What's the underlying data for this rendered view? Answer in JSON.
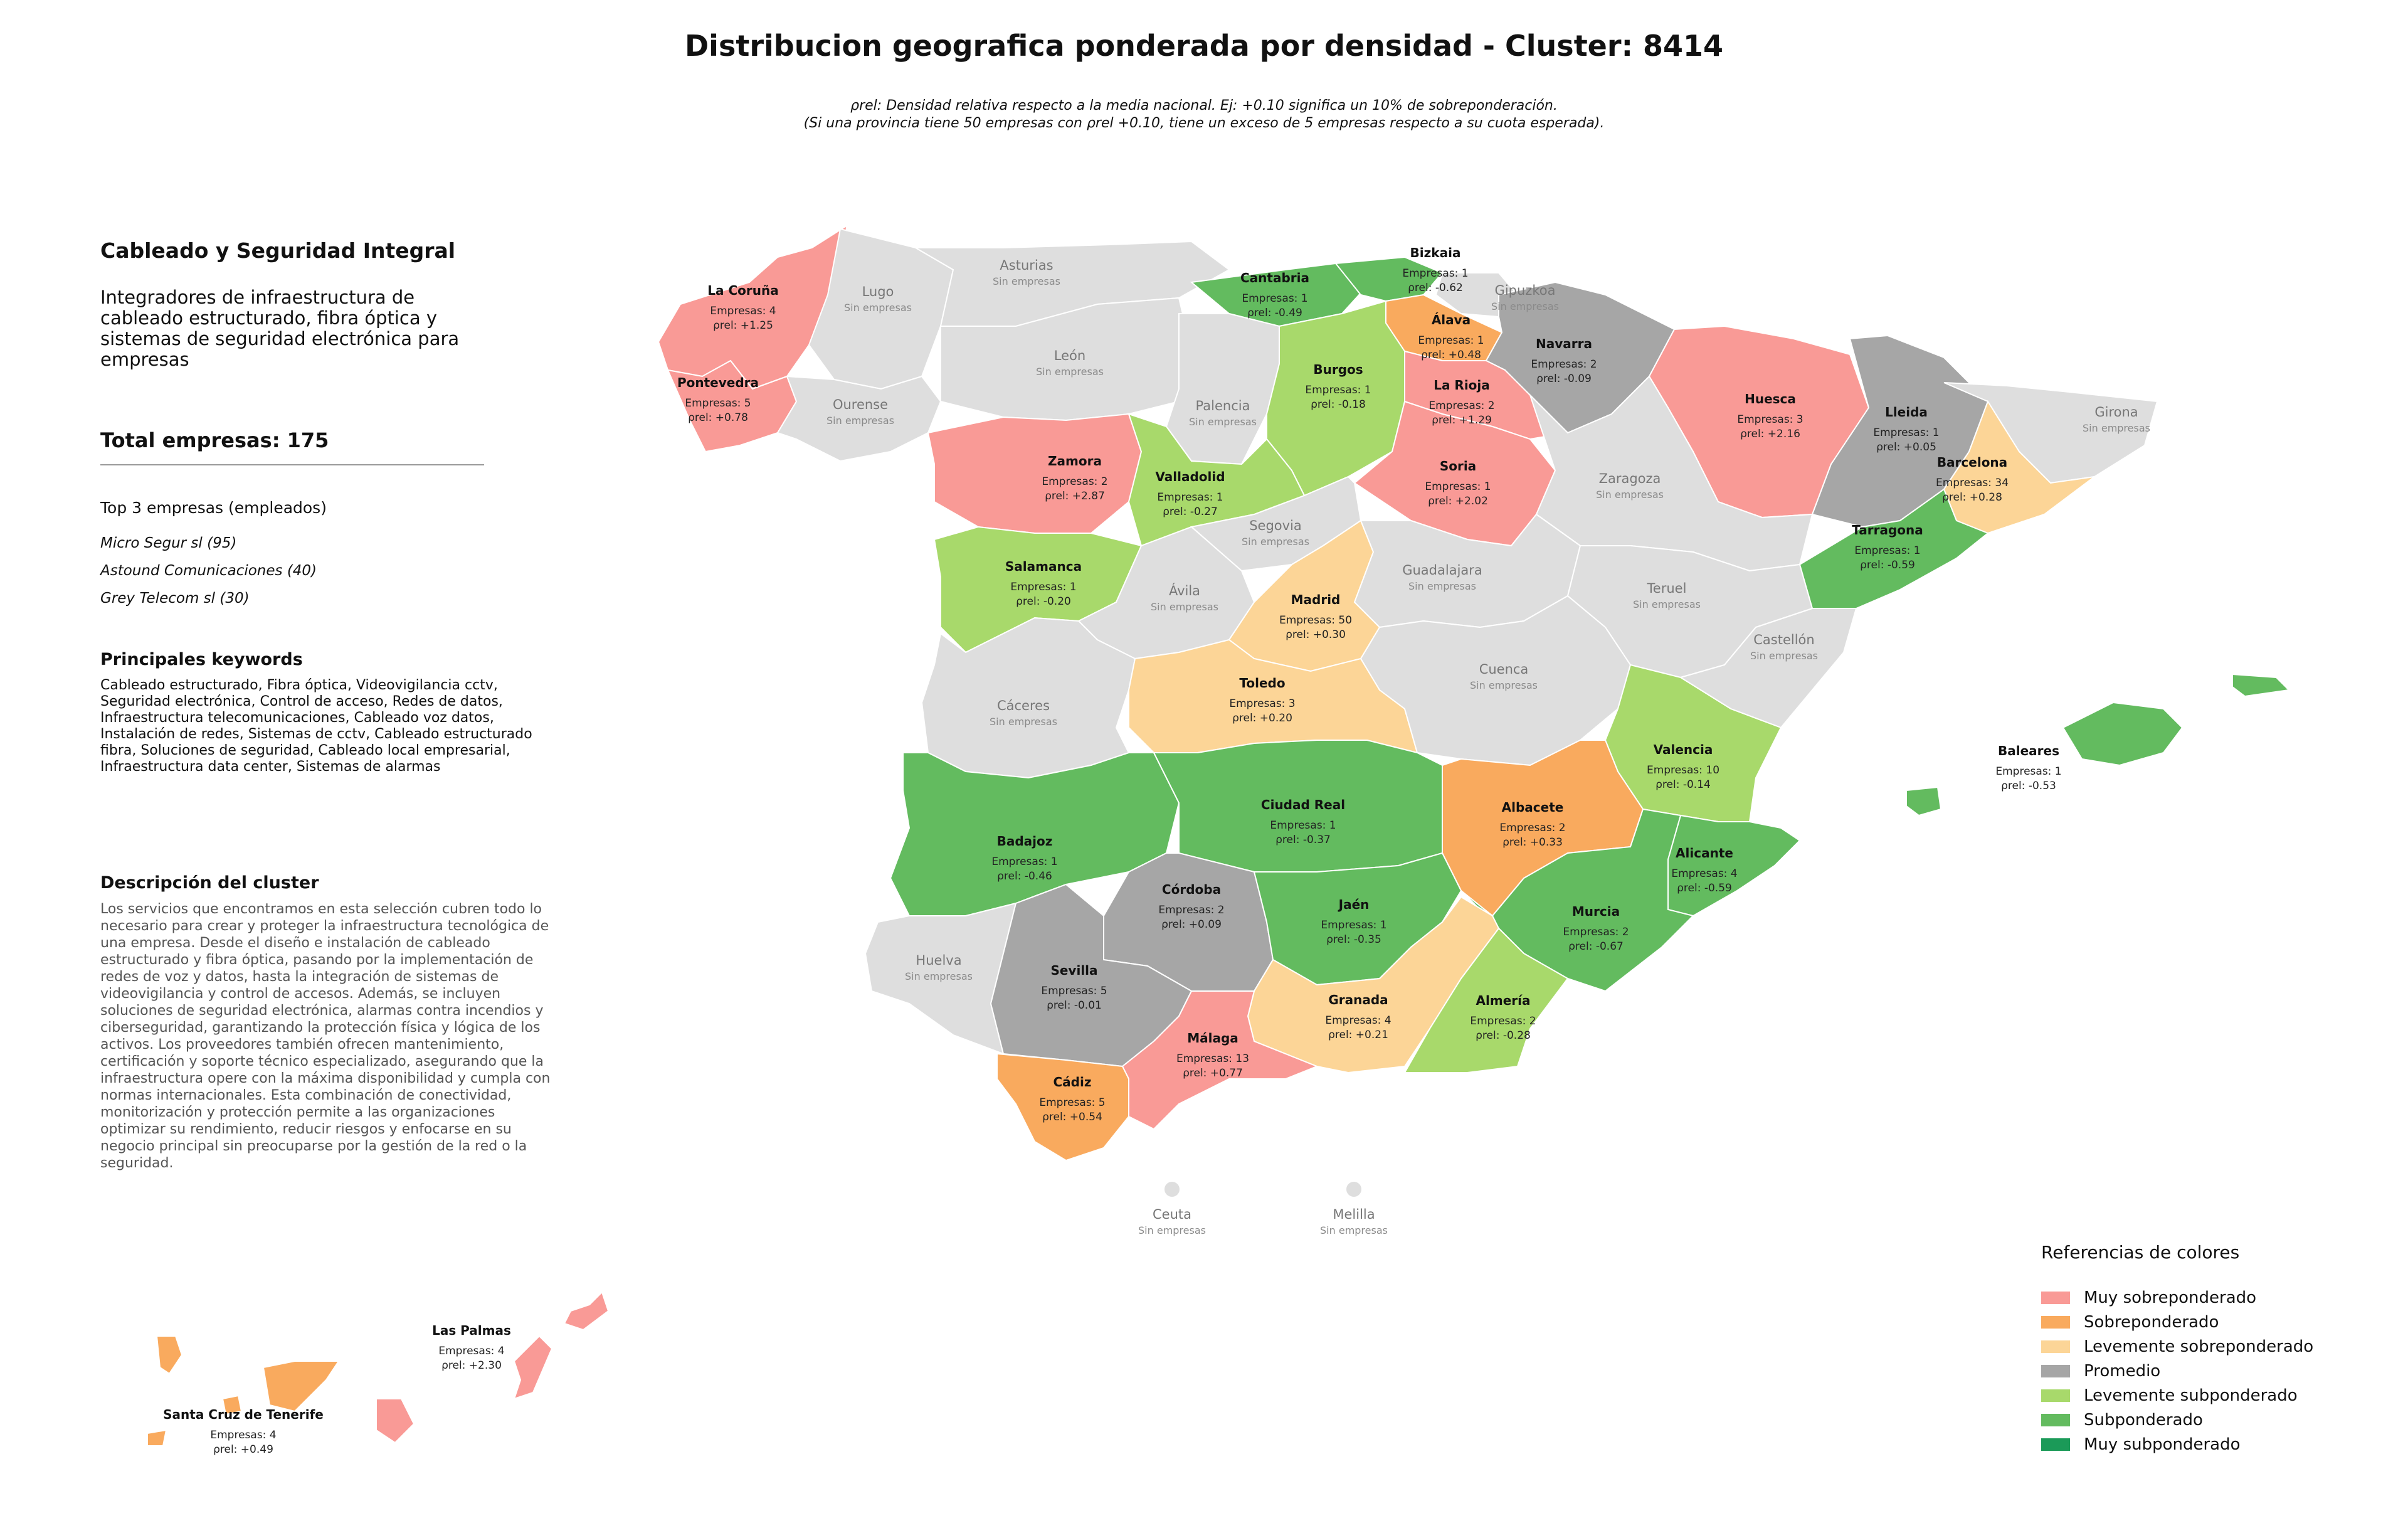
{
  "title": "Distribucion geografica ponderada por densidad - Cluster: 8414",
  "note_line1": "ρrel: Densidad relativa respecto a la media nacional. Ej: +0.10 significa un 10% de sobreponderación.",
  "note_line2": "(Si una provincia tiene 50 empresas con ρrel +0.10, tiene un exceso de 5 empresas respecto a su cuota esperada).",
  "panel": {
    "heading": "Cableado y Seguridad Integral",
    "description": "Integradores de infraestructura de cableado estructurado, fibra óptica y sistemas de seguridad electrónica para empresas",
    "total": "Total empresas: 175",
    "top_title": "Top 3 empresas (empleados)",
    "top": [
      "Micro Segur sl (95)",
      "Astound Comunicaciones (40)",
      "Grey Telecom sl (30)"
    ],
    "keywords_title": "Principales keywords",
    "keywords": "Cableado estructurado, Fibra óptica, Videovigilancia cctv, Seguridad electrónica, Control de acceso, Redes de datos, Infraestructura telecomunicaciones, Cableado voz datos, Instalación de redes, Sistemas de cctv, Cableado estructurado fibra, Soluciones de seguridad, Cableado local empresarial, Infraestructura data center, Sistemas de alarmas",
    "cluster_title": "Descripción del cluster",
    "cluster_text": "Los servicios que encontramos en esta selección cubren todo lo necesario para crear y proteger la infraestructura tecnológica de una empresa. Desde el diseño e instalación de cableado estructurado y fibra óptica, pasando por la implementación de redes de voz y datos, hasta la integración de sistemas de videovigilancia y control de accesos. Además, se incluyen soluciones de seguridad electrónica, alarmas contra incendios y ciberseguridad, garantizando la protección física y lógica de los activos. Los proveedores también ofrecen mantenimiento, certificación y soporte técnico especializado, asegurando que la infraestructura opere con la máxima disponibilidad y cumpla con normas internacionales. Esta combinación de conectividad, monitorización y protección permite a las organizaciones optimizar su rendimiento, reducir riesgos y enfocarse en su negocio principal sin preocuparse por la gestión de la red o la seguridad."
  },
  "labels": {
    "empresas_prefix": "Empresas: ",
    "rho_prefix": "ρrel: ",
    "sin_empresas": "Sin empresas"
  },
  "colors": {
    "muy_sobre": "#f99a96",
    "sobre": "#f9aa5e",
    "lev_sobre": "#fcd597",
    "promedio": "#a6a6a6",
    "lev_sub": "#a8d96b",
    "sub": "#63bb5f",
    "muy_sub": "#1b9a58",
    "none": "#dedede"
  },
  "provinces": [
    {
      "name": "La Coruña",
      "empresas": 4,
      "rho": "+1.25",
      "cat": "muy_sobre"
    },
    {
      "name": "Lugo",
      "empresas": null,
      "cat": "none"
    },
    {
      "name": "Asturias",
      "empresas": null,
      "cat": "none"
    },
    {
      "name": "Cantabria",
      "empresas": 1,
      "rho": "-0.49",
      "cat": "sub"
    },
    {
      "name": "Bizkaia",
      "empresas": 1,
      "rho": "-0.62",
      "cat": "sub"
    },
    {
      "name": "Gipuzkoa",
      "empresas": null,
      "cat": "none"
    },
    {
      "name": "Álava",
      "empresas": 1,
      "rho": "+0.48",
      "cat": "sobre"
    },
    {
      "name": "Navarra",
      "empresas": 2,
      "rho": "-0.09",
      "cat": "promedio"
    },
    {
      "name": "Huesca",
      "empresas": 3,
      "rho": "+2.16",
      "cat": "muy_sobre"
    },
    {
      "name": "Lleida",
      "empresas": 1,
      "rho": "+0.05",
      "cat": "promedio"
    },
    {
      "name": "Girona",
      "empresas": null,
      "cat": "none"
    },
    {
      "name": "Barcelona",
      "empresas": 34,
      "rho": "+0.28",
      "cat": "lev_sobre"
    },
    {
      "name": "Tarragona",
      "empresas": 1,
      "rho": "-0.59",
      "cat": "sub"
    },
    {
      "name": "Pontevedra",
      "empresas": 5,
      "rho": "+0.78",
      "cat": "muy_sobre"
    },
    {
      "name": "Ourense",
      "empresas": null,
      "cat": "none"
    },
    {
      "name": "León",
      "empresas": null,
      "cat": "none"
    },
    {
      "name": "Palencia",
      "empresas": null,
      "cat": "none"
    },
    {
      "name": "Burgos",
      "empresas": 1,
      "rho": "-0.18",
      "cat": "lev_sub"
    },
    {
      "name": "La Rioja",
      "empresas": 2,
      "rho": "+1.29",
      "cat": "muy_sobre"
    },
    {
      "name": "Soria",
      "empresas": 1,
      "rho": "+2.02",
      "cat": "muy_sobre"
    },
    {
      "name": "Zaragoza",
      "empresas": null,
      "cat": "none"
    },
    {
      "name": "Zamora",
      "empresas": 2,
      "rho": "+2.87",
      "cat": "muy_sobre"
    },
    {
      "name": "Valladolid",
      "empresas": 1,
      "rho": "-0.27",
      "cat": "lev_sub"
    },
    {
      "name": "Segovia",
      "empresas": null,
      "cat": "none"
    },
    {
      "name": "Salamanca",
      "empresas": 1,
      "rho": "-0.20",
      "cat": "lev_sub"
    },
    {
      "name": "Ávila",
      "empresas": null,
      "cat": "none"
    },
    {
      "name": "Madrid",
      "empresas": 50,
      "rho": "+0.30",
      "cat": "lev_sobre"
    },
    {
      "name": "Guadalajara",
      "empresas": null,
      "cat": "none"
    },
    {
      "name": "Teruel",
      "empresas": null,
      "cat": "none"
    },
    {
      "name": "Castellón",
      "empresas": null,
      "cat": "none"
    },
    {
      "name": "Cáceres",
      "empresas": null,
      "cat": "none"
    },
    {
      "name": "Toledo",
      "empresas": 3,
      "rho": "+0.20",
      "cat": "lev_sobre"
    },
    {
      "name": "Cuenca",
      "empresas": null,
      "cat": "none"
    },
    {
      "name": "Valencia",
      "empresas": 10,
      "rho": "-0.14",
      "cat": "lev_sub"
    },
    {
      "name": "Baleares",
      "empresas": 1,
      "rho": "-0.53",
      "cat": "sub"
    },
    {
      "name": "Badajoz",
      "empresas": 1,
      "rho": "-0.46",
      "cat": "sub"
    },
    {
      "name": "Ciudad Real",
      "empresas": 1,
      "rho": "-0.37",
      "cat": "sub"
    },
    {
      "name": "Albacete",
      "empresas": 2,
      "rho": "+0.33",
      "cat": "sobre"
    },
    {
      "name": "Alicante",
      "empresas": 4,
      "rho": "-0.59",
      "cat": "sub"
    },
    {
      "name": "Córdoba",
      "empresas": 2,
      "rho": "+0.09",
      "cat": "promedio"
    },
    {
      "name": "Jaén",
      "empresas": 1,
      "rho": "-0.35",
      "cat": "sub"
    },
    {
      "name": "Murcia",
      "empresas": 2,
      "rho": "-0.67",
      "cat": "sub"
    },
    {
      "name": "Huelva",
      "empresas": null,
      "cat": "none"
    },
    {
      "name": "Sevilla",
      "empresas": 5,
      "rho": "-0.01",
      "cat": "promedio"
    },
    {
      "name": "Granada",
      "empresas": 4,
      "rho": "+0.21",
      "cat": "lev_sobre"
    },
    {
      "name": "Almería",
      "empresas": 2,
      "rho": "-0.28",
      "cat": "lev_sub"
    },
    {
      "name": "Málaga",
      "empresas": 13,
      "rho": "+0.77",
      "cat": "muy_sobre"
    },
    {
      "name": "Cádiz",
      "empresas": 5,
      "rho": "+0.54",
      "cat": "sobre"
    },
    {
      "name": "Ceuta",
      "empresas": null,
      "cat": "none"
    },
    {
      "name": "Melilla",
      "empresas": null,
      "cat": "none"
    },
    {
      "name": "Las Palmas",
      "empresas": 4,
      "rho": "+2.30",
      "cat": "muy_sobre"
    },
    {
      "name": "Santa Cruz de Tenerife",
      "empresas": 4,
      "rho": "+0.49",
      "cat": "sobre"
    }
  ],
  "legend": {
    "title": "Referencias de colores",
    "items": [
      {
        "label": "Muy sobreponderado",
        "color": "#f99a96"
      },
      {
        "label": "Sobreponderado",
        "color": "#f9aa5e"
      },
      {
        "label": "Levemente sobreponderado",
        "color": "#fcd597"
      },
      {
        "label": "Promedio",
        "color": "#a6a6a6"
      },
      {
        "label": "Levemente subponderado",
        "color": "#a8d96b"
      },
      {
        "label": "Subponderado",
        "color": "#63bb5f"
      },
      {
        "label": "Muy subponderado",
        "color": "#1b9a58"
      }
    ]
  }
}
